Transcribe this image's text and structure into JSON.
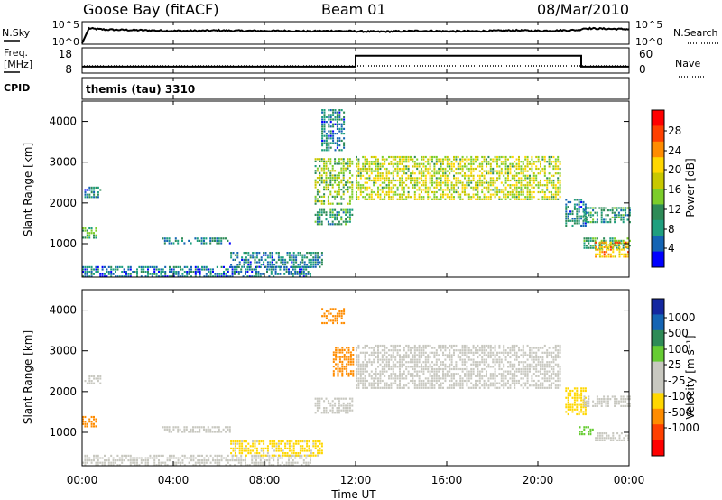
{
  "header": {
    "station": "Goose Bay (fitACF)",
    "beam": "Beam 01",
    "date": "08/Mar/2010"
  },
  "nsky_panel": {
    "left_label": "N.Sky",
    "left_ticks": [
      "10^5",
      "10^0"
    ],
    "right_ticks": [
      "10^5",
      "10^0"
    ],
    "right_label": "N.Search"
  },
  "freq_panel": {
    "left_label_line1": "Freq.",
    "left_label_line2": "[MHz]",
    "left_ticks": [
      "18",
      "8"
    ],
    "right_ticks": [
      "60",
      "0"
    ],
    "right_label": "Nave"
  },
  "cpid_panel": {
    "left_label": "CPID",
    "program": "themis (tau) 3310"
  },
  "x_axis": {
    "label": "Time UT",
    "ticks": [
      "00:00",
      "04:00",
      "08:00",
      "12:00",
      "16:00",
      "20:00",
      "00:00"
    ]
  },
  "power_panel": {
    "ylabel": "Slant Range [km]",
    "yticks": [
      "4000",
      "3000",
      "2000",
      "1000"
    ],
    "colorbar_label": "Power [dB]",
    "colorbar_ticks": [
      "28",
      "24",
      "20",
      "16",
      "12",
      "8",
      "4"
    ],
    "colorbar_colors": [
      "#ff0000",
      "#ff4000",
      "#ff8c00",
      "#ffd700",
      "#c8c800",
      "#7ccd2a",
      "#2e8b57",
      "#1f9f7f",
      "#1464b4",
      "#0000ff"
    ]
  },
  "velocity_panel": {
    "ylabel": "Slant Range [km]",
    "yticks": [
      "4000",
      "3000",
      "2000",
      "1000"
    ],
    "colorbar_label": "Velocity [m s⁻¹]",
    "colorbar_ticks": [
      "1000",
      "500",
      "100",
      "25",
      "-25",
      "-100",
      "-500",
      "-1000"
    ],
    "colorbar_colors": [
      "#1428a0",
      "#1464b4",
      "#2e8b57",
      "#66cc33",
      "#c8c8c0",
      "#c8c8c0",
      "#ffd700",
      "#ff8c00",
      "#ff4000",
      "#ff0000"
    ]
  },
  "chart_data": {
    "type": "heatmap",
    "x_range_hours": [
      0,
      24
    ],
    "y_range_km": [
      180,
      4500
    ],
    "grid": false,
    "nsky": {
      "x_hours": [
        0,
        0.3,
        1,
        2,
        3,
        4,
        5,
        6,
        7,
        8,
        9,
        10,
        11,
        12,
        13,
        14,
        15,
        16,
        17,
        18,
        19,
        20,
        21,
        21.8,
        22,
        23,
        24
      ],
      "log_value": [
        0,
        3.6,
        3.3,
        3.2,
        3.1,
        3.0,
        3.0,
        3.1,
        3.0,
        3.0,
        3.0,
        2.9,
        3.0,
        2.9,
        2.8,
        2.9,
        3.0,
        2.9,
        2.9,
        3.0,
        3.1,
        3.0,
        3.1,
        3.2,
        3.6,
        3.5,
        3.4
      ]
    },
    "freq_mhz": {
      "x_hours": [
        0,
        12,
        12,
        21.9,
        21.9,
        24
      ],
      "values": [
        10.3,
        10.3,
        15.8,
        15.8,
        10.3,
        10.3
      ]
    },
    "power_regions": [
      {
        "t0": 0.0,
        "t1": 0.6,
        "r0": 1150,
        "r1": 1400,
        "dB": 10
      },
      {
        "t0": 0.1,
        "t1": 0.8,
        "r0": 2150,
        "r1": 2400,
        "dB": 6
      },
      {
        "t0": 3.5,
        "t1": 6.5,
        "r0": 1000,
        "r1": 1150,
        "dB": 6
      },
      {
        "t0": 0.0,
        "t1": 10.0,
        "r0": 180,
        "r1": 450,
        "dB": 5
      },
      {
        "t0": 6.5,
        "t1": 10.5,
        "r0": 400,
        "r1": 800,
        "dB": 6
      },
      {
        "t0": 10.2,
        "t1": 11.9,
        "r0": 1500,
        "r1": 1850,
        "dB": 8
      },
      {
        "t0": 10.2,
        "t1": 11.9,
        "r0": 2000,
        "r1": 3100,
        "dB": 13
      },
      {
        "t0": 10.5,
        "t1": 11.5,
        "r0": 3300,
        "r1": 4300,
        "dB": 6
      },
      {
        "t0": 12.0,
        "t1": 21.0,
        "r0": 2100,
        "r1": 3150,
        "dB": 16
      },
      {
        "t0": 21.2,
        "t1": 22.1,
        "r0": 1450,
        "r1": 2100,
        "dB": 6
      },
      {
        "t0": 22.0,
        "t1": 24.0,
        "r0": 1550,
        "r1": 1900,
        "dB": 8
      },
      {
        "t0": 22.0,
        "t1": 24.0,
        "r0": 900,
        "r1": 1150,
        "dB": 10
      },
      {
        "t0": 22.5,
        "t1": 24.0,
        "r0": 650,
        "r1": 1050,
        "dB": 22
      }
    ],
    "velocity_regions": [
      {
        "t0": 0.0,
        "t1": 0.6,
        "r0": 1150,
        "r1": 1400,
        "v": -150
      },
      {
        "t0": 0.1,
        "t1": 0.8,
        "r0": 2200,
        "r1": 2400,
        "v": 0
      },
      {
        "t0": 3.5,
        "t1": 6.5,
        "r0": 1000,
        "r1": 1150,
        "v": 0
      },
      {
        "t0": 0.0,
        "t1": 10.0,
        "r0": 180,
        "r1": 450,
        "v": 0
      },
      {
        "t0": 6.5,
        "t1": 10.5,
        "r0": 400,
        "r1": 800,
        "v": -40
      },
      {
        "t0": 10.2,
        "t1": 11.9,
        "r0": 1500,
        "r1": 1850,
        "v": 0
      },
      {
        "t0": 11.0,
        "t1": 11.9,
        "r0": 2400,
        "r1": 3100,
        "v": -200
      },
      {
        "t0": 10.5,
        "t1": 11.5,
        "r0": 3700,
        "r1": 4050,
        "v": -200
      },
      {
        "t0": 12.0,
        "t1": 21.0,
        "r0": 2100,
        "r1": 3150,
        "v": 0
      },
      {
        "t0": 21.2,
        "t1": 22.1,
        "r0": 1450,
        "r1": 2100,
        "v": -60
      },
      {
        "t0": 22.0,
        "t1": 24.0,
        "r0": 1650,
        "r1": 1900,
        "v": 0
      },
      {
        "t0": 21.8,
        "t1": 22.5,
        "r0": 950,
        "r1": 1150,
        "v": 80
      },
      {
        "t0": 22.5,
        "t1": 24.0,
        "r0": 800,
        "r1": 1000,
        "v": 0
      }
    ]
  }
}
